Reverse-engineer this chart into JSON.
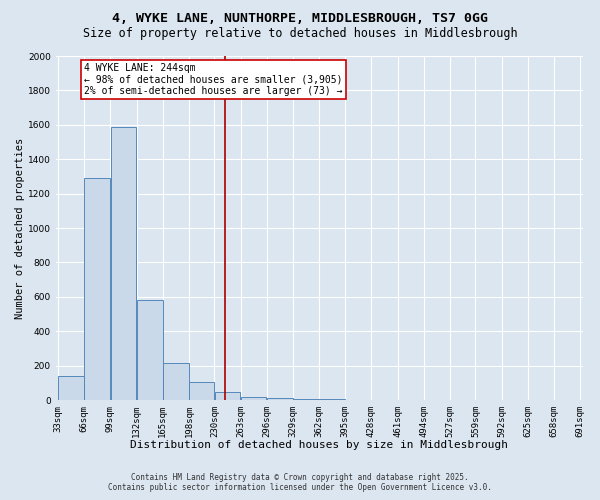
{
  "title": "4, WYKE LANE, NUNTHORPE, MIDDLESBROUGH, TS7 0GG",
  "subtitle": "Size of property relative to detached houses in Middlesbrough",
  "xlabel": "Distribution of detached houses by size in Middlesbrough",
  "ylabel": "Number of detached properties",
  "bar_values": [
    140,
    1290,
    1590,
    580,
    215,
    105,
    45,
    20,
    10,
    5,
    5,
    0,
    0,
    0,
    0,
    0,
    0,
    0,
    0,
    0
  ],
  "bin_edges": [
    33,
    66,
    99,
    132,
    165,
    198,
    230,
    263,
    296,
    329,
    362,
    395,
    428,
    461,
    494,
    527,
    559,
    592,
    625,
    658,
    691
  ],
  "bar_color": "#c9d9ea",
  "bar_edge_color": "#5588bb",
  "vline_x": 244,
  "vline_color": "#aa0000",
  "annotation_text": "4 WYKE LANE: 244sqm\n← 98% of detached houses are smaller (3,905)\n2% of semi-detached houses are larger (73) →",
  "annotation_box_color": "#ffffff",
  "annotation_border_color": "#cc0000",
  "ylim": [
    0,
    2000
  ],
  "yticks": [
    0,
    200,
    400,
    600,
    800,
    1000,
    1200,
    1400,
    1600,
    1800,
    2000
  ],
  "background_color": "#dce6f0",
  "plot_bg_color": "#dce6f0",
  "grid_color": "#ffffff",
  "footer_line1": "Contains HM Land Registry data © Crown copyright and database right 2025.",
  "footer_line2": "Contains public sector information licensed under the Open Government Licence v3.0.",
  "title_fontsize": 9.5,
  "subtitle_fontsize": 8.5,
  "tick_fontsize": 6.5,
  "xlabel_fontsize": 8,
  "ylabel_fontsize": 7.5,
  "annotation_fontsize": 7,
  "footer_fontsize": 5.5
}
